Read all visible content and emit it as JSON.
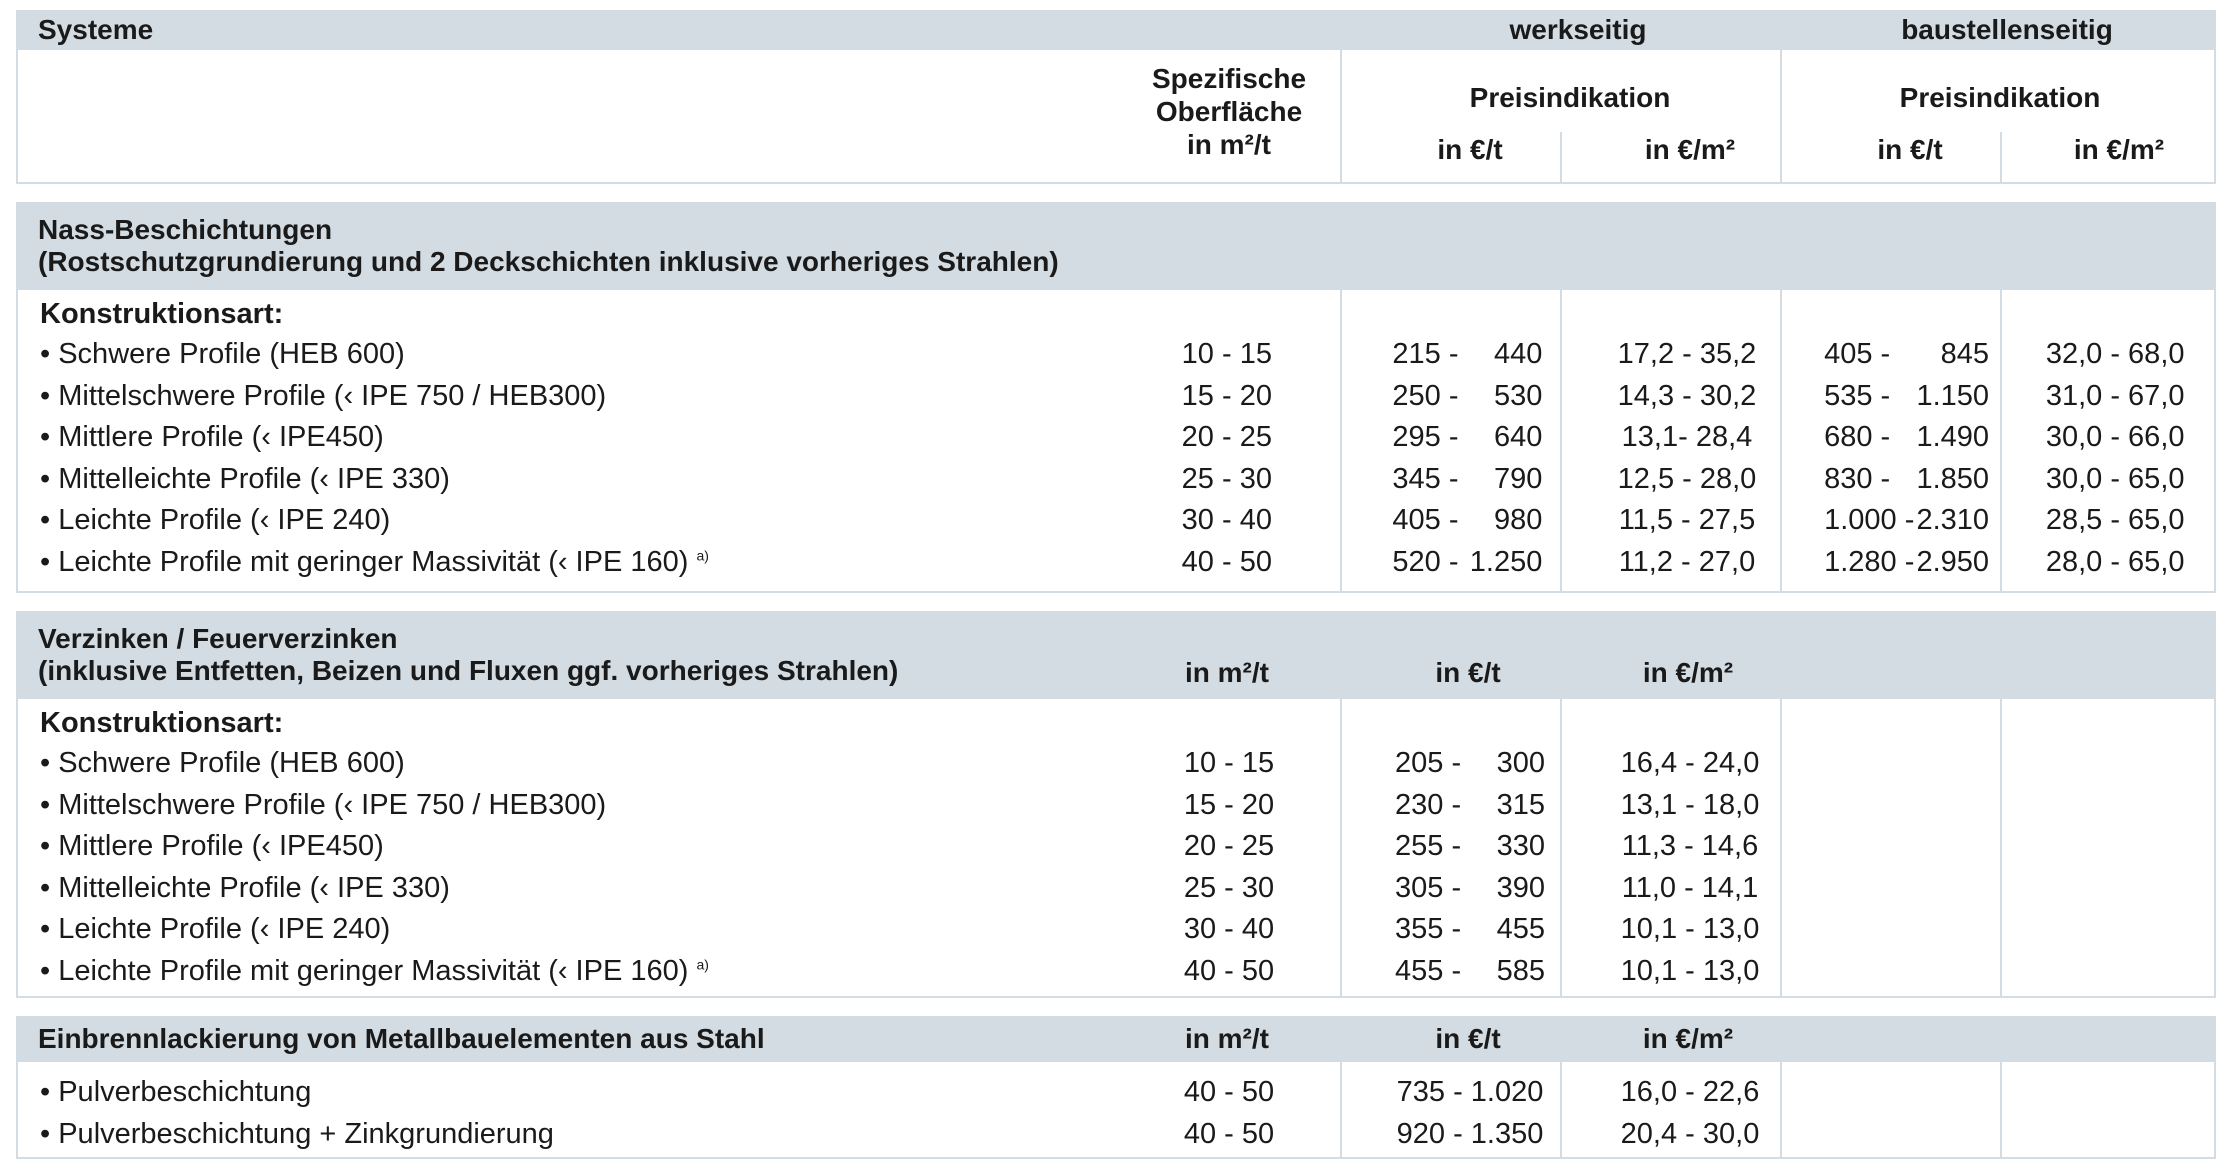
{
  "header": {
    "col_systeme": "Systeme",
    "col_werkseitig": "werkseitig",
    "col_baustellenseitig": "baustellenseitig",
    "spez_line1": "Spezifische",
    "spez_line2": "Oberfläche",
    "spez_line3": "in m²/t",
    "preis_werk": "Preisindikation",
    "preis_bau": "Preisindikation",
    "unit_eur_t": "in €/t",
    "unit_eur_m2": "in €/m²"
  },
  "sections": [
    {
      "title1": "Nass-Beschichtungen",
      "title2": "(Rostschutzgrundierung und 2 Deckschichten inklusive vorheriges Strahlen)",
      "sublabel": "Konstruktionsart:",
      "rows": [
        {
          "label": "Schwere Profile (HEB 600)",
          "sup": "",
          "surf": "10 - 15",
          "wt_a": "215 -",
          "wt_b": "440",
          "wm": "17,2 - 35,2",
          "bt_a": "405 -",
          "bt_b": "845",
          "bm": "32,0 - 68,0"
        },
        {
          "label": "Mittelschwere Profile (‹ IPE 750 / HEB300)",
          "sup": "",
          "surf": "15 - 20",
          "wt_a": "250 -",
          "wt_b": "530",
          "wm": "14,3 - 30,2",
          "bt_a": "535 -",
          "bt_b": "1.150",
          "bm": "31,0 - 67,0"
        },
        {
          "label": "Mittlere Profile (‹ IPE450)",
          "sup": "",
          "surf": "20 - 25",
          "wt_a": "295 -",
          "wt_b": "640",
          "wm": "13,1- 28,4",
          "bt_a": "680 -",
          "bt_b": "1.490",
          "bm": "30,0 - 66,0"
        },
        {
          "label": "Mittelleichte Profile (‹ IPE 330)",
          "sup": "",
          "surf": "25 - 30",
          "wt_a": "345 -",
          "wt_b": "790",
          "wm": "12,5 - 28,0",
          "bt_a": "830 -",
          "bt_b": "1.850",
          "bm": "30,0 - 65,0"
        },
        {
          "label": "Leichte Profile (‹ IPE 240)",
          "sup": "",
          "surf": "30 - 40",
          "wt_a": "405 -",
          "wt_b": "980",
          "wm": "11,5 - 27,5",
          "bt_a": "1.000 -",
          "bt_b": "2.310",
          "bm": "28,5 - 65,0"
        },
        {
          "label": "Leichte Profile mit geringer Massivität (‹ IPE 160)",
          "sup": "a)",
          "surf": "40 - 50",
          "wt_a": "520 -",
          "wt_b": "1.250",
          "wm": "11,2 - 27,0",
          "bt_a": "1.280 -",
          "bt_b": "2.950",
          "bm": "28,0 - 65,0"
        }
      ]
    },
    {
      "title1": "Verzinken / Feuerverzinken",
      "title2": "(inklusive Entfetten, Beizen und Fluxen ggf. vorheriges Strahlen)",
      "unit_surf": "in m²/t",
      "unit_t": "in €/t",
      "unit_m2": "in €/m²",
      "sublabel": "Konstruktionsart:",
      "rows": [
        {
          "label": "Schwere Profile (HEB 600)",
          "sup": "",
          "surf": "10 - 15",
          "wt_a": "205 -",
          "wt_b": "300",
          "wm": "16,4 - 24,0"
        },
        {
          "label": "Mittelschwere Profile (‹ IPE 750 / HEB300)",
          "sup": "",
          "surf": "15 - 20",
          "wt_a": "230 -",
          "wt_b": "315",
          "wm": "13,1 - 18,0"
        },
        {
          "label": "Mittlere Profile (‹ IPE450)",
          "sup": "",
          "surf": "20 - 25",
          "wt_a": "255 -",
          "wt_b": "330",
          "wm": "11,3 - 14,6"
        },
        {
          "label": "Mittelleichte Profile (‹ IPE 330)",
          "sup": "",
          "surf": "25 - 30",
          "wt_a": "305 -",
          "wt_b": "390",
          "wm": "11,0 - 14,1"
        },
        {
          "label": "Leichte Profile (‹ IPE 240)",
          "sup": "",
          "surf": "30 - 40",
          "wt_a": "355 -",
          "wt_b": "455",
          "wm": "10,1 - 13,0"
        },
        {
          "label": "Leichte Profile mit geringer Massivität (‹ IPE 160)",
          "sup": "a)",
          "surf": "40 - 50",
          "wt_a": "455 -",
          "wt_b": "585",
          "wm": "10,1 - 13,0"
        }
      ]
    },
    {
      "title1": "Einbrennlackierung von Metallbauelementen aus Stahl",
      "unit_surf": "in m²/t",
      "unit_t": "in €/t",
      "unit_m2": "in €/m²",
      "rows": [
        {
          "label": "Pulverbeschichtung",
          "surf": "40 - 50",
          "wt": "735 - 1.020",
          "wm": "16,0 - 22,6"
        },
        {
          "label": "Pulverbeschichtung + Zinkgrundierung",
          "surf": "40 - 50",
          "wt": "920 - 1.350",
          "wm": "20,4 - 30,0"
        }
      ]
    }
  ]
}
